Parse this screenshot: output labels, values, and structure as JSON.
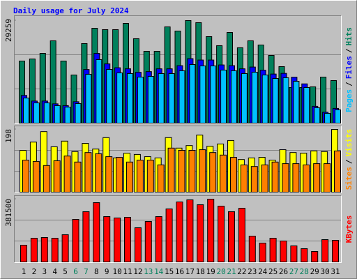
{
  "chart_data": [
    {
      "type": "bar",
      "title": "Daily usage for July 2024",
      "ylim": [
        0,
        29259
      ],
      "yticks": [
        29259
      ],
      "legend_separator": "/",
      "series": [
        {
          "name": "Pages",
          "color": "#00c0ff",
          "values": [
            7165,
            5772,
            5772,
            4976,
            4578,
            5573,
            13933,
            18113,
            15326,
            14331,
            14132,
            13137,
            13336,
            14132,
            14132,
            14928,
            16719,
            16321,
            16321,
            15127,
            14928,
            14132,
            14530,
            13734,
            12739,
            12938,
            11942,
            10151,
            4379,
            2787,
            3782
          ]
        },
        {
          "name": "Files",
          "color": "#0000ff",
          "values": [
            7900,
            6300,
            6300,
            5500,
            5000,
            6100,
            15300,
            19900,
            16900,
            15800,
            15500,
            14500,
            14700,
            15500,
            15500,
            16400,
            18400,
            18000,
            18000,
            16600,
            16400,
            15500,
            16000,
            15100,
            14000,
            14200,
            13100,
            11200,
            4800,
            3100,
            4200
          ]
        },
        {
          "name": "Hits",
          "color": "#00805c",
          "values": [
            17715,
            18312,
            19904,
            23487,
            17715,
            13734,
            22691,
            27069,
            26671,
            26671,
            28463,
            24084,
            20501,
            20501,
            27468,
            26273,
            29259,
            28662,
            24681,
            22093,
            25875,
            21496,
            23487,
            22293,
            19307,
            16122,
            10151,
            10151,
            10350,
            13137,
            12141
          ]
        }
      ]
    },
    {
      "type": "bar",
      "ylim": [
        0,
        198
      ],
      "yticks": [
        198
      ],
      "legend_separator": "/",
      "series": [
        {
          "name": "Sites",
          "color": "#ff8000",
          "values": [
            101,
            97,
            84,
            99,
            114,
            95,
            125,
            121,
            112,
            110,
            95,
            101,
            101,
            86,
            139,
            132,
            132,
            134,
            125,
            117,
            110,
            86,
            81,
            86,
            95,
            90,
            90,
            86,
            90,
            90,
            130
          ]
        },
        {
          "name": "Visits",
          "color": "#ffff00",
          "values": [
            132,
            158,
            191,
            143,
            161,
            128,
            154,
            136,
            172,
            108,
            123,
            119,
            112,
            108,
            172,
            139,
            147,
            180,
            145,
            152,
            163,
            103,
            108,
            110,
            101,
            134,
            125,
            123,
            130,
            128,
            198
          ]
        }
      ]
    },
    {
      "type": "bar",
      "ylim": [
        0,
        381500
      ],
      "yticks": [
        381500
      ],
      "categories": [
        "1",
        "2",
        "3",
        "4",
        "5",
        "6",
        "7",
        "8",
        "9",
        "10",
        "11",
        "12",
        "13",
        "14",
        "15",
        "16",
        "17",
        "18",
        "19",
        "20",
        "21",
        "22",
        "23",
        "24",
        "25",
        "26",
        "27",
        "28",
        "29",
        "30",
        "31"
      ],
      "category_colors": [
        "#000000",
        "#000000",
        "#000000",
        "#000000",
        "#000000",
        "#00805c",
        "#00805c",
        "#000000",
        "#000000",
        "#000000",
        "#000000",
        "#000000",
        "#00805c",
        "#00805c",
        "#000000",
        "#000000",
        "#000000",
        "#000000",
        "#000000",
        "#00805c",
        "#00805c",
        "#000000",
        "#000000",
        "#000000",
        "#000000",
        "#000000",
        "#00805c",
        "#00805c",
        "#000000",
        "#000000",
        "#000000"
      ],
      "series": [
        {
          "name": "KBytes",
          "color": "#ff0000",
          "values": [
            101700,
            144100,
            148400,
            144100,
            165300,
            258600,
            305200,
            360300,
            275500,
            267100,
            271300,
            207700,
            245900,
            275500,
            322200,
            364600,
            377300,
            347600,
            381500,
            339100,
            305200,
            326400,
            156800,
            114500,
            144100,
            127200,
            97500,
            80500,
            63600,
            135600,
            131400
          ]
        }
      ]
    }
  ]
}
